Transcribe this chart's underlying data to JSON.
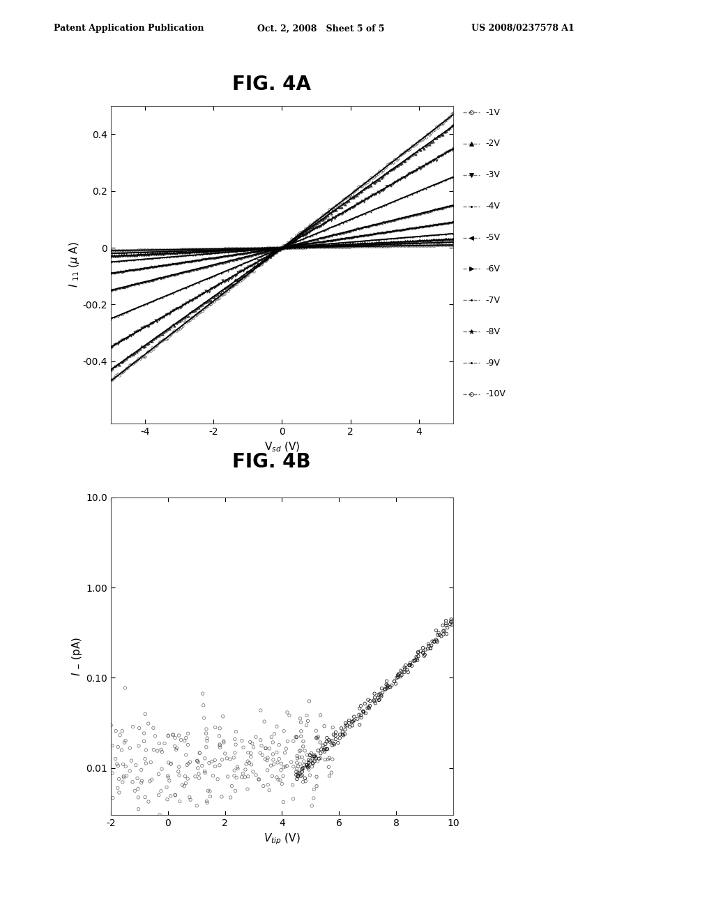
{
  "fig4a_title": "FIG. 4A",
  "fig4b_title": "FIG. 4B",
  "header_left": "Patent Application Publication",
  "header_mid": "Oct. 2, 2008   Sheet 5 of 5",
  "header_right": "US 2008/0237578 A1",
  "fig4a": {
    "xlabel": "V$_{sd}$ (V)",
    "ylabel": "$I$ $_{11}$ ($\\mu$ A)",
    "xlim": [
      -5,
      5
    ],
    "ylim": [
      -0.62,
      0.5
    ],
    "xticks": [
      -4,
      -2,
      0,
      2,
      4
    ],
    "yticks": [
      0.4,
      0.2,
      0.0,
      -0.2,
      -0.4
    ],
    "ytick_labels": [
      "0.4",
      "0.2",
      "0",
      "-00.2",
      "-00.4"
    ],
    "legend_labels": [
      "-1V",
      "-2V",
      "-3V",
      "-4V",
      "-5V",
      "-6V",
      "-7V",
      "-8V",
      "-9V",
      "-10V"
    ],
    "slopes": [
      0.094,
      0.086,
      0.07,
      0.05,
      0.03,
      0.018,
      0.01,
      0.006,
      0.004,
      0.002
    ]
  },
  "fig4b": {
    "xlabel": "$V_{tip}$ (V)",
    "ylabel": "$I$ $_{-}$ (pA)",
    "xlim": [
      -2,
      10
    ],
    "ylim_log": [
      0.003,
      10.0
    ],
    "xticks": [
      -2,
      0,
      2,
      4,
      6,
      8,
      10
    ],
    "ytick_labels": [
      "10.0",
      "1.00",
      "0.10",
      "0.01"
    ],
    "ytick_values": [
      10.0,
      1.0,
      0.1,
      0.01
    ]
  },
  "background_color": "#ffffff",
  "text_color": "#000000",
  "line_color": "#000000"
}
